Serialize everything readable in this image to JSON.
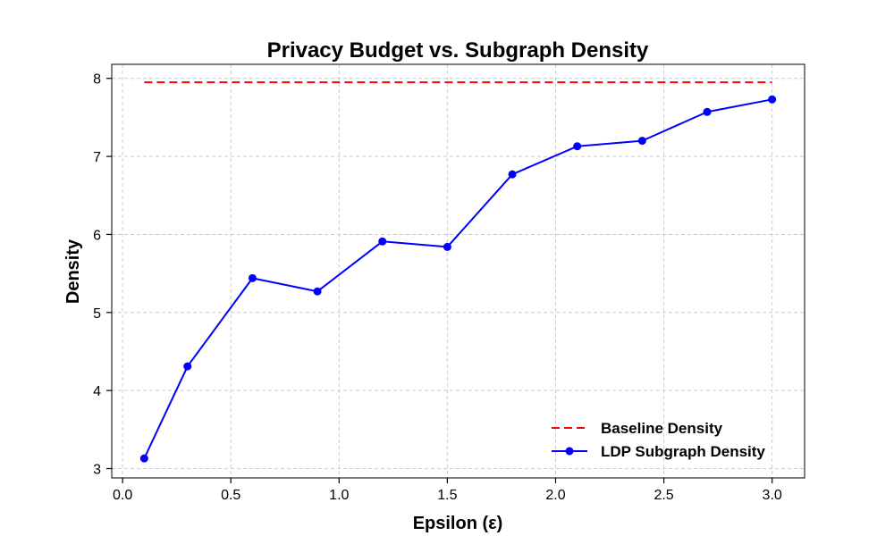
{
  "chart_data": {
    "type": "line",
    "title": "Privacy Budget vs. Subgraph Density",
    "xlabel": "Epsilon (ε)",
    "ylabel": "Density",
    "xlim": [
      -0.05,
      3.15
    ],
    "ylim": [
      2.88,
      8.18
    ],
    "xticks": [
      0.0,
      0.5,
      1.0,
      1.5,
      2.0,
      2.5,
      3.0
    ],
    "xtick_labels": [
      "0.0",
      "0.5",
      "1.0",
      "1.5",
      "2.0",
      "2.5",
      "3.0"
    ],
    "yticks": [
      3,
      4,
      5,
      6,
      7,
      8
    ],
    "ytick_labels": [
      "3",
      "4",
      "5",
      "6",
      "7",
      "8"
    ],
    "grid": true,
    "legend_position": "bottom-right",
    "series": [
      {
        "name": "Baseline Density",
        "color": "#ff0000",
        "style": "dashed",
        "marker": "none",
        "x": [
          0.1,
          3.0
        ],
        "y": [
          7.95,
          7.95
        ]
      },
      {
        "name": "LDP Subgraph Density",
        "color": "#0000ff",
        "style": "solid",
        "marker": "circle",
        "x": [
          0.1,
          0.3,
          0.6,
          0.9,
          1.2,
          1.5,
          1.8,
          2.1,
          2.4,
          2.7,
          3.0
        ],
        "y": [
          3.13,
          4.31,
          5.44,
          5.27,
          5.91,
          5.84,
          6.77,
          7.13,
          7.2,
          7.57,
          7.73
        ]
      }
    ]
  }
}
